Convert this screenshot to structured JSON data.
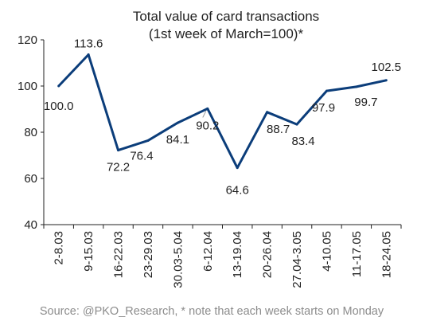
{
  "chart_data": {
    "type": "line",
    "title": "Total value of card transactions",
    "subtitle": "(1st week of March=100)*",
    "categories": [
      "2-8.03",
      "9-15.03",
      "16-22.03",
      "23-29.03",
      "30.03-5.04",
      "6-12.04",
      "13-19.04",
      "20-26.04",
      "27.04-3.05",
      "4-10.05",
      "11-17.05",
      "18-24.05"
    ],
    "series": [
      {
        "values": [
          100.0,
          113.6,
          72.2,
          76.4,
          84.1,
          90.2,
          64.6,
          88.7,
          83.4,
          97.9,
          99.7,
          102.5
        ],
        "labels": [
          "100.0",
          "113.6",
          "72.2",
          "76.4",
          "84.1",
          "90.2",
          "64.6",
          "88.7",
          "83.4",
          "97.9",
          "99.7",
          "102.5"
        ],
        "color": "#0b3d7a"
      }
    ],
    "ylim": [
      40,
      120
    ],
    "yticks": [
      40,
      60,
      80,
      100,
      120
    ],
    "ytick_labels": [
      "40",
      "60",
      "80",
      "100",
      "120"
    ],
    "grid": false,
    "source": "Source: @PKO_Research, * note that each week starts on Monday"
  }
}
